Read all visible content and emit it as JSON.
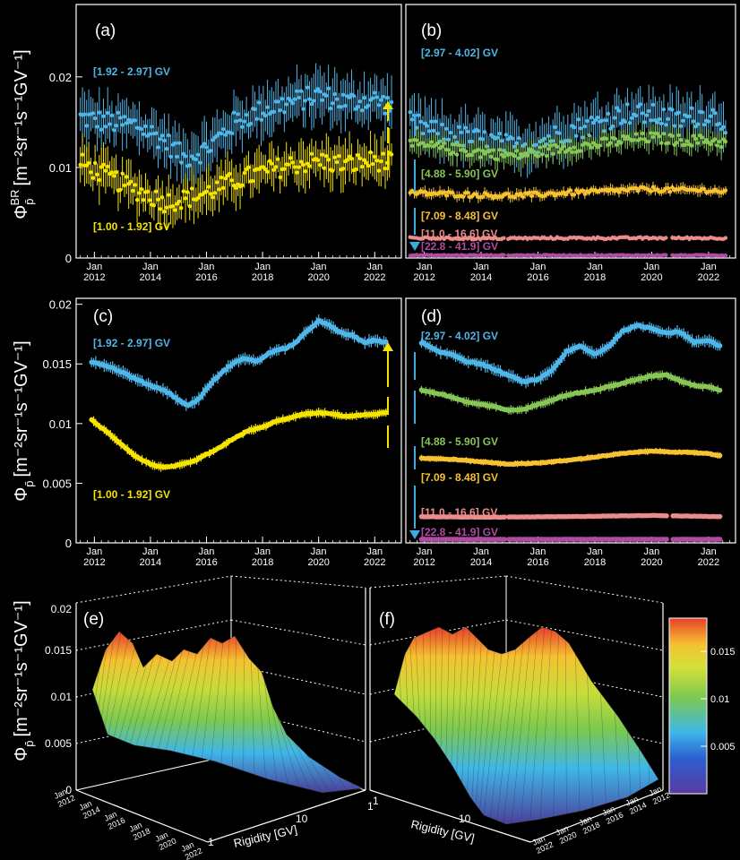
{
  "colors": {
    "background": "#000000",
    "frame": "#ffffff",
    "cyan": "#4fb6e8",
    "yellow": "#f4e400",
    "green": "#86c556",
    "orange": "#f7c232",
    "pink": "#ec8c8c",
    "purple": "#b04aa3",
    "arrow_cyan": "#3fa9e0",
    "arrow_yellow": "#f4e400"
  },
  "chart_data": [
    {
      "id": "a",
      "type": "scatter",
      "panel_label": "(a)",
      "ylabel_main": "Φ",
      "ylabel_sup": "BR",
      "ylabel_sub": "p̄",
      "ylabel_unit": "[m⁻²sr⁻¹s⁻¹GV⁻¹]",
      "ylim": [
        0,
        0.028
      ],
      "yticks": [
        0,
        0.01,
        0.02
      ],
      "ytick_labels": [
        "0",
        "0.01",
        "0.02"
      ],
      "xlim": [
        2011.35,
        2022.95
      ],
      "xticks": [
        2012,
        2014,
        2016,
        2018,
        2020,
        2022
      ],
      "xtick_top": [
        "Jan",
        "Jan",
        "Jan",
        "Jan",
        "Jan",
        "Jan"
      ],
      "xtick_bottom": [
        "2012",
        "2014",
        "2016",
        "2018",
        "2020",
        "2022"
      ],
      "series": [
        {
          "name": "[1.92 - 2.97] GV",
          "color": "cyan",
          "err": 0.0022,
          "x": [
            2011.5,
            2012.5,
            2013.5,
            2014.5,
            2015.2,
            2016.0,
            2017.0,
            2018.0,
            2019.0,
            2020.0,
            2021.0,
            2022.0,
            2022.6
          ],
          "y": [
            0.0155,
            0.015,
            0.0147,
            0.013,
            0.011,
            0.012,
            0.015,
            0.0163,
            0.0172,
            0.018,
            0.0172,
            0.0175,
            0.0168
          ]
        },
        {
          "name": "[1.00 - 1.92] GV",
          "color": "yellow",
          "err": 0.002,
          "x": [
            2011.5,
            2012.5,
            2013.5,
            2014.5,
            2015.2,
            2016.0,
            2017.0,
            2018.0,
            2019.0,
            2020.0,
            2021.0,
            2022.0,
            2022.6
          ],
          "y": [
            0.0105,
            0.009,
            0.0075,
            0.0062,
            0.0065,
            0.0072,
            0.0085,
            0.0095,
            0.0103,
            0.0107,
            0.0103,
            0.0108,
            0.0105
          ]
        }
      ],
      "labels": [
        {
          "text": "[1.92 - 2.97] GV",
          "color": "cyan"
        },
        {
          "text": "[1.00 - 1.92] GV",
          "color": "yellow"
        }
      ]
    },
    {
      "id": "b",
      "type": "scatter",
      "panel_label": "(b)",
      "ylim": [
        0,
        0.028
      ],
      "xlim": [
        2011.35,
        2022.95
      ],
      "xticks": [
        2012,
        2014,
        2016,
        2018,
        2020,
        2022
      ],
      "xtick_top": [
        "Jan",
        "Jan",
        "Jan",
        "Jan",
        "Jan",
        "Jan"
      ],
      "xtick_bottom": [
        "2012",
        "2014",
        "2016",
        "2018",
        "2020",
        "2022"
      ],
      "series": [
        {
          "name": "[2.97 - 4.02] GV",
          "color": "cyan",
          "err": 0.0022,
          "x": [
            2011.5,
            2012.5,
            2013.5,
            2014.5,
            2015.2,
            2016.0,
            2017.0,
            2018.0,
            2019.0,
            2020.0,
            2021.0,
            2022.0,
            2022.6
          ],
          "y": [
            0.015,
            0.0138,
            0.0133,
            0.0128,
            0.0122,
            0.0128,
            0.014,
            0.0148,
            0.016,
            0.0158,
            0.0152,
            0.016,
            0.015
          ]
        },
        {
          "name": "[4.88 - 5.90] GV",
          "color": "green",
          "err": 0.0011,
          "x": [
            2011.5,
            2012.5,
            2013.5,
            2014.5,
            2015.2,
            2016.0,
            2017.0,
            2018.0,
            2019.0,
            2020.0,
            2021.0,
            2022.0,
            2022.6
          ],
          "y": [
            0.0125,
            0.0122,
            0.0118,
            0.0115,
            0.0113,
            0.0117,
            0.0122,
            0.0125,
            0.013,
            0.0133,
            0.013,
            0.013,
            0.0127
          ]
        },
        {
          "name": "[7.09 - 8.48] GV",
          "color": "orange",
          "err": 0.0005,
          "x": [
            2011.5,
            2012.5,
            2013.5,
            2014.5,
            2015.2,
            2016.0,
            2017.0,
            2018.0,
            2019.0,
            2020.0,
            2021.0,
            2022.0,
            2022.6
          ],
          "y": [
            0.0072,
            0.0071,
            0.007,
            0.0069,
            0.0069,
            0.007,
            0.0072,
            0.0073,
            0.0075,
            0.0076,
            0.0075,
            0.0075,
            0.0073
          ]
        },
        {
          "name": "[11.0 - 16.6] GV",
          "color": "pink",
          "err": 0.0002,
          "x": [
            2011.5,
            2014.0,
            2017.0,
            2020.0,
            2022.6
          ],
          "y": [
            0.0022,
            0.00215,
            0.0022,
            0.0022,
            0.0022
          ]
        },
        {
          "name": "[22.8 - 41.9] GV",
          "color": "purple",
          "err": 0.0001,
          "x": [
            2011.5,
            2014.0,
            2017.0,
            2020.0,
            2022.6
          ],
          "y": [
            0.0003,
            0.0003,
            0.0003,
            0.0003,
            0.0003
          ]
        }
      ],
      "labels": [
        {
          "text": "[2.97 - 4.02] GV",
          "color": "cyan"
        },
        {
          "text": "[4.88 - 5.90] GV",
          "color": "green"
        },
        {
          "text": "[7.09 - 8.48] GV",
          "color": "orange"
        },
        {
          "text": "[11.0 - 16.6] GV",
          "color": "pink"
        },
        {
          "text": "[22.8 - 41.9] GV",
          "color": "purple"
        }
      ]
    },
    {
      "id": "c",
      "type": "line",
      "panel_label": "(c)",
      "ylabel_main": "Φ",
      "ylabel_sub": "p̄",
      "ylabel_unit": "[m⁻²sr⁻¹s⁻¹GV⁻¹]",
      "ylim": [
        0,
        0.0205
      ],
      "yticks": [
        0,
        0.005,
        0.01,
        0.015,
        0.02
      ],
      "ytick_labels": [
        "0",
        "0.005",
        "0.01",
        "0.015",
        "0.02"
      ],
      "xlim": [
        2011.35,
        2022.95
      ],
      "xticks": [
        2012,
        2014,
        2016,
        2018,
        2020,
        2022
      ],
      "xtick_top": [
        "Jan",
        "Jan",
        "Jan",
        "Jan",
        "Jan",
        "Jan"
      ],
      "xtick_bottom": [
        "2012",
        "2014",
        "2016",
        "2018",
        "2020",
        "2022"
      ],
      "series": [
        {
          "name": "[1.92 - 2.97] GV",
          "color": "cyan",
          "err": 0.0004,
          "x": [
            2011.9,
            2012.5,
            2013.0,
            2013.5,
            2014.0,
            2014.5,
            2015.0,
            2015.3,
            2015.7,
            2016.2,
            2016.8,
            2017.3,
            2017.8,
            2018.3,
            2018.8,
            2019.2,
            2019.6,
            2020.0,
            2020.4,
            2020.8,
            2021.2,
            2021.6,
            2022.0,
            2022.4
          ],
          "y": [
            0.0152,
            0.0148,
            0.0143,
            0.0137,
            0.0132,
            0.0128,
            0.012,
            0.0115,
            0.012,
            0.0135,
            0.0148,
            0.0155,
            0.0152,
            0.016,
            0.0163,
            0.0168,
            0.0178,
            0.0186,
            0.0182,
            0.0176,
            0.0174,
            0.0168,
            0.017,
            0.0168
          ]
        },
        {
          "name": "[1.00 - 1.92] GV",
          "color": "yellow",
          "err": 0.0003,
          "x": [
            2011.9,
            2012.5,
            2013.0,
            2013.5,
            2014.0,
            2014.5,
            2015.0,
            2015.5,
            2016.0,
            2016.5,
            2017.0,
            2017.5,
            2018.0,
            2018.5,
            2019.0,
            2019.5,
            2020.0,
            2020.5,
            2021.0,
            2021.5,
            2022.0,
            2022.4
          ],
          "y": [
            0.0103,
            0.0092,
            0.0082,
            0.0072,
            0.0066,
            0.0063,
            0.0065,
            0.0068,
            0.0074,
            0.008,
            0.0088,
            0.0094,
            0.0097,
            0.0102,
            0.0105,
            0.0108,
            0.0109,
            0.0108,
            0.0106,
            0.0107,
            0.0108,
            0.0109
          ]
        }
      ],
      "labels": [
        {
          "text": "[1.92 - 2.97] GV",
          "color": "cyan"
        },
        {
          "text": "[1.00 - 1.92] GV",
          "color": "yellow"
        }
      ]
    },
    {
      "id": "d",
      "type": "line",
      "panel_label": "(d)",
      "ylim": [
        0,
        0.0205
      ],
      "xlim": [
        2011.35,
        2022.95
      ],
      "xticks": [
        2012,
        2014,
        2016,
        2018,
        2020,
        2022
      ],
      "xtick_top": [
        "Jan",
        "Jan",
        "Jan",
        "Jan",
        "Jan",
        "Jan"
      ],
      "xtick_bottom": [
        "2012",
        "2014",
        "2016",
        "2018",
        "2020",
        "2022"
      ],
      "series": [
        {
          "name": "[2.97 - 4.02] GV",
          "color": "cyan",
          "err": 0.0004,
          "x": [
            2011.9,
            2012.5,
            2013.0,
            2013.5,
            2014.0,
            2014.5,
            2015.0,
            2015.5,
            2016.0,
            2016.5,
            2017.0,
            2017.5,
            2018.0,
            2018.5,
            2019.0,
            2019.5,
            2020.0,
            2020.5,
            2021.0,
            2021.5,
            2022.0,
            2022.4
          ],
          "y": [
            0.0168,
            0.016,
            0.0158,
            0.0152,
            0.015,
            0.0145,
            0.014,
            0.0135,
            0.0137,
            0.0145,
            0.016,
            0.0165,
            0.0158,
            0.0165,
            0.0178,
            0.0182,
            0.018,
            0.0176,
            0.0177,
            0.0168,
            0.017,
            0.0165
          ]
        },
        {
          "name": "[4.88 - 5.90] GV",
          "color": "green",
          "err": 0.0003,
          "x": [
            2011.9,
            2012.5,
            2013.0,
            2013.5,
            2014.0,
            2014.5,
            2015.0,
            2015.5,
            2016.0,
            2016.5,
            2017.0,
            2017.5,
            2018.0,
            2018.5,
            2019.0,
            2019.5,
            2020.0,
            2020.5,
            2021.0,
            2021.5,
            2022.0,
            2022.4
          ],
          "y": [
            0.0128,
            0.0125,
            0.0122,
            0.0118,
            0.0116,
            0.0114,
            0.0111,
            0.0112,
            0.0116,
            0.012,
            0.0124,
            0.0126,
            0.0128,
            0.0131,
            0.0134,
            0.0137,
            0.014,
            0.0141,
            0.0136,
            0.0132,
            0.0131,
            0.0128
          ]
        },
        {
          "name": "[7.09 - 8.48] GV",
          "color": "orange",
          "err": 0.0002,
          "x": [
            2011.9,
            2013.0,
            2014.0,
            2015.0,
            2016.0,
            2017.0,
            2018.0,
            2019.0,
            2020.0,
            2021.0,
            2022.0,
            2022.4
          ],
          "y": [
            0.0071,
            0.007,
            0.0068,
            0.0066,
            0.0067,
            0.0069,
            0.0072,
            0.0075,
            0.0077,
            0.0076,
            0.0075,
            0.0073
          ]
        },
        {
          "name": "[11.0 - 16.6] GV",
          "color": "pink",
          "err": 0.0001,
          "x": [
            2011.9,
            2014.0,
            2017.0,
            2020.0,
            2022.4
          ],
          "y": [
            0.0022,
            0.00215,
            0.0022,
            0.0023,
            0.0022
          ]
        },
        {
          "name": "[22.8 - 41.9] GV",
          "color": "purple",
          "err": 5e-05,
          "x": [
            2011.9,
            2014.0,
            2017.0,
            2020.0,
            2022.4
          ],
          "y": [
            0.0003,
            0.0003,
            0.0003,
            0.0003,
            0.0003
          ]
        }
      ],
      "labels": [
        {
          "text": "[2.97 - 4.02] GV",
          "color": "cyan"
        },
        {
          "text": "[4.88 - 5.90] GV",
          "color": "green"
        },
        {
          "text": "[7.09 - 8.48] GV",
          "color": "orange"
        },
        {
          "text": "[11.0 - 16.6] GV",
          "color": "pink"
        },
        {
          "text": "[22.8 - 41.9] GV",
          "color": "purple"
        }
      ]
    },
    {
      "id": "e",
      "type": "surface",
      "panel_label": "(e)",
      "ylabel_main": "Φ",
      "ylabel_sub": "p̄",
      "ylabel_unit": "[m⁻²sr⁻¹s⁻¹GV⁻¹]",
      "zticks": [
        "0",
        "0.005",
        "0.01",
        "0.015",
        "0.02"
      ],
      "time_ticks": [
        "2012",
        "2014",
        "2016",
        "2018",
        "2020",
        "2022"
      ],
      "rigidity_ticks": [
        "1",
        "10",
        "1"
      ],
      "rigidity_label": "Rigidity [GV]"
    },
    {
      "id": "f",
      "type": "surface",
      "panel_label": "(f)",
      "time_ticks": [
        "2022",
        "2020",
        "2018",
        "2016",
        "2014",
        "2012"
      ],
      "rigidity_ticks": [
        "10",
        "1"
      ],
      "rigidity_label": "Rigidity [GV]"
    }
  ],
  "colorbar": {
    "ticks": [
      "0.015",
      "0.01",
      "0.005"
    ],
    "values": [
      0.015,
      0.01,
      0.005
    ],
    "min": 0.0,
    "max": 0.0185,
    "stops": [
      "#5a3ba0",
      "#2c5fd0",
      "#3fb6e8",
      "#7cc94f",
      "#d4e03a",
      "#f4c230",
      "#e8402a"
    ]
  },
  "tick_label_jan": "Jan"
}
